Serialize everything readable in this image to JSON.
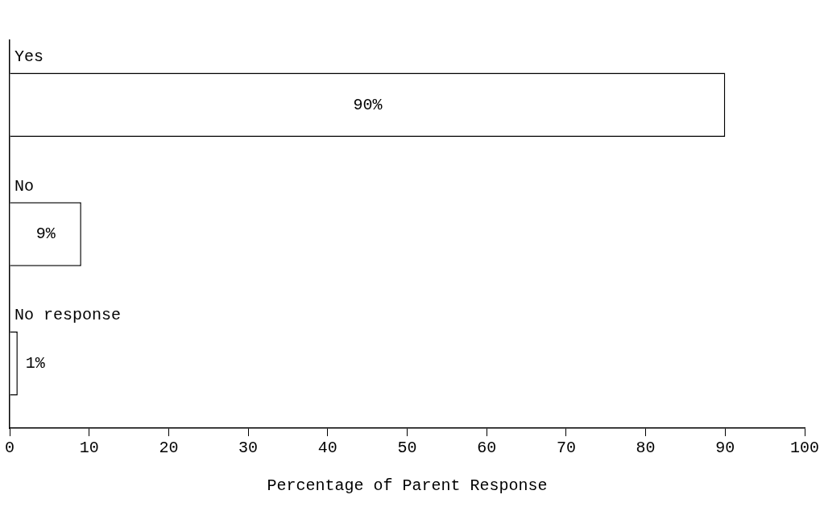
{
  "chart_data": {
    "type": "bar",
    "orientation": "horizontal",
    "categories": [
      "Yes",
      "No",
      "No response"
    ],
    "values": [
      90,
      9,
      1
    ],
    "color": "#ffffff",
    "value_labels": [
      "90%",
      "9%",
      "1%"
    ],
    "xlabel": "Percentage of Parent Response",
    "xlim": [
      0,
      100
    ],
    "xticks": [
      0,
      10,
      20,
      30,
      40,
      50,
      60,
      70,
      80,
      90,
      100
    ],
    "grid": false,
    "legend": false
  }
}
